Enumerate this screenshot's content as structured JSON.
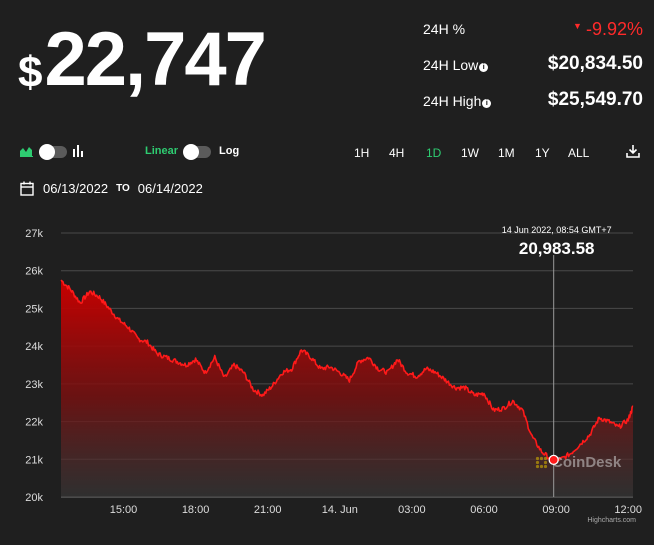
{
  "price": {
    "currency": "$",
    "value": "22,747"
  },
  "stats": [
    {
      "label": "24H %",
      "value": "-9.92%",
      "negative": true,
      "info": false
    },
    {
      "label": "24H Low",
      "value": "$20,834.50",
      "negative": false,
      "info": true
    },
    {
      "label": "24H High",
      "value": "$25,549.70",
      "negative": false,
      "info": true
    }
  ],
  "scale_toggle": {
    "linear": "Linear",
    "log": "Log"
  },
  "ranges": [
    "1H",
    "4H",
    "1D",
    "1W",
    "1M",
    "1Y",
    "ALL"
  ],
  "active_range": "1D",
  "date_range": {
    "from": "06/13/2022",
    "to_label": "TO",
    "to": "06/14/2022"
  },
  "colors": {
    "accent_green": "#2ecc71",
    "down_red": "#ff2a2a",
    "line_red": "#ff1a1a",
    "background": "#1f1f1f"
  },
  "chart_data": {
    "type": "area",
    "y_ticks": [
      "20k",
      "21k",
      "22k",
      "23k",
      "24k",
      "25k",
      "26k",
      "27k"
    ],
    "ylim": [
      20000,
      27000
    ],
    "x_ticks": [
      {
        "label": "15:00",
        "t": 1.0
      },
      {
        "label": "18:00",
        "t": 4.0
      },
      {
        "label": "21:00",
        "t": 7.0
      },
      {
        "label": "14. Jun",
        "t": 10.0
      },
      {
        "label": "03:00",
        "t": 13.0
      },
      {
        "label": "06:00",
        "t": 16.0
      },
      {
        "label": "09:00",
        "t": 19.0
      },
      {
        "label": "12:00",
        "t": 22.0
      }
    ],
    "xlim": [
      -1.6,
      22.2
    ],
    "series": [
      {
        "t": [
          -1.6,
          -1.2,
          -0.8,
          -0.4,
          0,
          0.4,
          0.8,
          1.2,
          1.6,
          2,
          2.4,
          2.8,
          3.2,
          3.6,
          4,
          4.4,
          4.8,
          5.2,
          5.6,
          6,
          6.4,
          6.8,
          7.2,
          7.6,
          8,
          8.4,
          8.8,
          9.2,
          9.6,
          10,
          10.4,
          10.8,
          11.2,
          11.6,
          12,
          12.4,
          12.8,
          13.2,
          13.6,
          14,
          14.4,
          14.8,
          15.2,
          15.6,
          16,
          16.4,
          16.8,
          17.2,
          17.6,
          18,
          18.4,
          18.8,
          19.2,
          19.6,
          20,
          20.4,
          20.8,
          21.2,
          21.6,
          22,
          22.2
        ],
        "values": [
          25750,
          25500,
          25150,
          25450,
          25300,
          25000,
          24700,
          24500,
          24200,
          24100,
          23800,
          23700,
          23600,
          23500,
          23650,
          23300,
          23700,
          23150,
          23500,
          23300,
          22850,
          22700,
          22950,
          23300,
          23400,
          23900,
          23700,
          23400,
          23450,
          23300,
          23100,
          23600,
          23700,
          23400,
          23300,
          23650,
          23300,
          23200,
          23400,
          23300,
          23100,
          22900,
          22900,
          22700,
          22750,
          22300,
          22350,
          22550,
          22300,
          21600,
          21200,
          21000,
          21000,
          21150,
          21400,
          21650,
          22100,
          22000,
          21850,
          22050,
          22400
        ]
      }
    ],
    "tooltip": {
      "date_label": "14 Jun 2022, 08:54 GMT+7",
      "value": "20,983.58",
      "t": 18.9,
      "y": 20983.58
    },
    "watermark": "CoinDesk",
    "credits": "Highcharts.com"
  }
}
